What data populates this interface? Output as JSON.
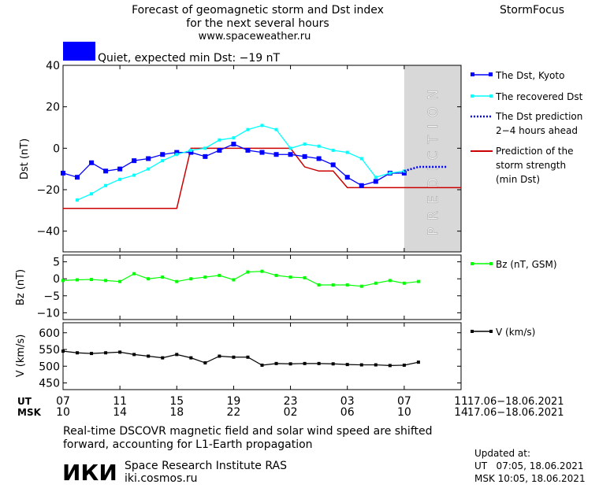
{
  "header": {
    "title_line1": "Forecast of geomagnetic storm and Dst index",
    "title_line2": "for the next several hours",
    "website": "www.spaceweather.ru",
    "brand": "StormFocus"
  },
  "status": {
    "text": "Quiet, expected min Dst: −19 nT",
    "color": "#0000ff"
  },
  "footer": {
    "note_line1": "Real-time DSCOVR magnetic field and solar wind speed are shifted",
    "note_line2": "forward, accounting for L1-Earth propagation",
    "logo_text": "ИКИ",
    "institute": "Space Research Institute RAS",
    "institute_url": "iki.cosmos.ru",
    "updated_label": "Updated at:",
    "updated_ut": "UT   07:05, 18.06.2021",
    "updated_msk": "MSK 10:05, 18.06.2021"
  },
  "time_axis": {
    "ut_label": "UT",
    "msk_label": "MSK",
    "ut_ticks": [
      "07",
      "11",
      "15",
      "19",
      "23",
      "03",
      "07",
      "11"
    ],
    "msk_ticks": [
      "10",
      "14",
      "18",
      "22",
      "02",
      "06",
      "10",
      "14"
    ],
    "tick_hours": [
      7,
      11,
      15,
      19,
      23,
      27,
      31,
      35
    ],
    "date_range_ut": "17.06−18.06.2021",
    "date_range_msk": "17.06−18.06.2021"
  },
  "chart_data": [
    {
      "type": "line",
      "ylabel": "Dst (nT)",
      "ylim": [
        -50,
        40
      ],
      "yticks": [
        40,
        20,
        0,
        -20,
        -40
      ],
      "xlim_ut_hours": [
        7,
        35
      ],
      "prediction_zone_ut_hours": [
        31,
        35
      ],
      "prediction_label": "PREDICTION",
      "series": [
        {
          "name": "The Dst, Kyoto",
          "color": "#0000ff",
          "x": [
            7,
            8,
            9,
            10,
            11,
            12,
            13,
            14,
            15,
            16,
            17,
            18,
            19,
            20,
            21,
            22,
            23,
            24,
            25,
            26,
            27,
            28,
            29,
            30,
            31
          ],
          "values": [
            -12,
            -14,
            -7,
            -11,
            -10,
            -6,
            -5,
            -3,
            -2,
            -2,
            -4,
            -1,
            2,
            -1,
            -2,
            -3,
            -3,
            -4,
            -5,
            -8,
            -14,
            -18,
            -16,
            -12,
            -12
          ]
        },
        {
          "name": "The recovered Dst",
          "color": "#00ffff",
          "x": [
            8,
            9,
            10,
            11,
            12,
            13,
            14,
            15,
            16,
            17,
            18,
            19,
            20,
            21,
            22,
            23,
            24,
            25,
            26,
            27,
            28,
            29,
            30,
            31
          ],
          "values": [
            -25,
            -22,
            -18,
            -15,
            -13,
            -10,
            -6,
            -3,
            -1,
            0,
            4,
            5,
            9,
            11,
            9,
            0,
            2,
            1,
            -1,
            -2,
            -5,
            -14,
            -12,
            -11
          ]
        },
        {
          "name": "The Dst prediction 2−4 hours ahead",
          "color": "#0000ff",
          "x": [
            31,
            32,
            33,
            34
          ],
          "values": [
            -11,
            -9,
            -9,
            -9
          ]
        },
        {
          "name": "Prediction of the storm strength (min Dst)",
          "color": "#cc0000",
          "x": [
            7,
            15,
            16,
            23,
            24,
            25,
            26,
            27,
            28,
            35
          ],
          "values": [
            -29,
            -29,
            0,
            0,
            -9,
            -11,
            -11,
            -19,
            -19,
            -19
          ]
        }
      ]
    },
    {
      "type": "line",
      "ylabel": "Bz (nT)",
      "ylim": [
        -12,
        7
      ],
      "yticks": [
        5,
        0,
        -5,
        -10
      ],
      "xlim_ut_hours": [
        7,
        35
      ],
      "series": [
        {
          "name": "Bz (nT, GSM)",
          "color": "#00ff00",
          "x": [
            7,
            8,
            9,
            10,
            11,
            12,
            13,
            14,
            15,
            16,
            17,
            18,
            19,
            20,
            21,
            22,
            23,
            24,
            25,
            26,
            27,
            28,
            29,
            30,
            31,
            32
          ],
          "values": [
            -0.5,
            -0.3,
            -0.2,
            -0.5,
            -0.8,
            1.5,
            0,
            0.5,
            -0.8,
            0,
            0.5,
            1,
            -0.3,
            2,
            2.2,
            1,
            0.5,
            0.3,
            -1.8,
            -1.8,
            -1.8,
            -2.2,
            -1.3,
            -0.5,
            -1.3,
            -0.8
          ]
        }
      ]
    },
    {
      "type": "line",
      "ylabel": "V (km/s)",
      "ylim": [
        430,
        630
      ],
      "yticks": [
        600,
        550,
        500,
        450
      ],
      "xlim_ut_hours": [
        7,
        35
      ],
      "series": [
        {
          "name": "V (km/s)",
          "color": "#000000",
          "x": [
            7,
            8,
            9,
            10,
            11,
            12,
            13,
            14,
            15,
            16,
            17,
            18,
            19,
            20,
            21,
            22,
            23,
            24,
            25,
            26,
            27,
            28,
            29,
            30,
            31,
            32
          ],
          "values": [
            545,
            540,
            538,
            540,
            542,
            535,
            530,
            525,
            535,
            525,
            510,
            530,
            527,
            527,
            503,
            508,
            507,
            508,
            508,
            507,
            505,
            504,
            504,
            502,
            503,
            512
          ]
        }
      ]
    }
  ]
}
